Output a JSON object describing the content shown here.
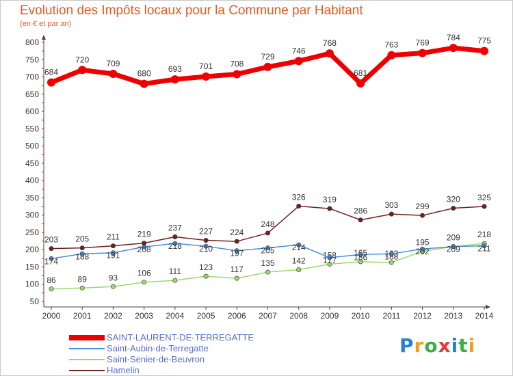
{
  "chart_data": {
    "type": "line",
    "title": "Evolution des Impôts locaux pour la Commune par Habitant",
    "subtitle": "(en € et par an)",
    "xlabel": "",
    "ylabel": "",
    "x": [
      "2000",
      "2001",
      "2002",
      "2003",
      "2004",
      "2005",
      "2006",
      "2007",
      "2008",
      "2009",
      "2010",
      "2011",
      "2012",
      "2013",
      "2014"
    ],
    "ylim": [
      50,
      800
    ],
    "yticks": [
      50,
      100,
      150,
      200,
      250,
      300,
      350,
      400,
      450,
      500,
      550,
      600,
      650,
      700,
      750,
      800
    ],
    "grid": false,
    "legend_position": "bottom-left",
    "series": [
      {
        "name": "SAINT-LAURENT-DE-TERREGATTE",
        "color": "#ee0000",
        "values": [
          684,
          720,
          709,
          680,
          693,
          701,
          708,
          729,
          746,
          768,
          681,
          763,
          769,
          784,
          775
        ]
      },
      {
        "name": "Saint-Aubin-de-Terregatte",
        "color": "#4a90d9",
        "values": [
          174,
          188,
          191,
          208,
          218,
          210,
          197,
          205,
          214,
          177,
          186,
          188,
          202,
          209,
          211
        ]
      },
      {
        "name": "Saint-Senier-de-Beuvron",
        "color": "#9ad86b",
        "values": [
          86,
          89,
          93,
          106,
          111,
          123,
          117,
          135,
          142,
          158,
          165,
          163,
          195,
          209,
          218
        ]
      },
      {
        "name": "Hamelin",
        "color": "#702020",
        "values": [
          203,
          205,
          211,
          219,
          237,
          227,
          224,
          248,
          326,
          319,
          286,
          303,
          299,
          320,
          325
        ]
      }
    ]
  },
  "logo": {
    "text": "Proxiti"
  }
}
